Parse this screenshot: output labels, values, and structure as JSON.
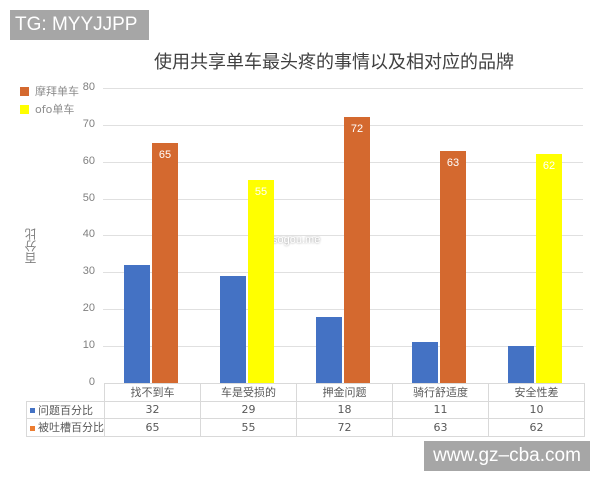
{
  "watermark_top": "TG: MYYJJPP",
  "watermark_bottom": "www.gz–cba.com",
  "watermark_mid": "sogou.me",
  "chart_data": {
    "type": "bar",
    "title": "使用共享单车最头疼的事情以及相对应的品牌",
    "xlabel": "",
    "ylabel": "百分比",
    "ylim": [
      0,
      80
    ],
    "yticks": [
      0,
      10,
      20,
      30,
      40,
      50,
      60,
      70,
      80
    ],
    "grid": true,
    "legend_position": "top-left",
    "legend": [
      {
        "name": "摩拜单车",
        "color": "#d4692f"
      },
      {
        "name": "ofo单车",
        "color": "#ffff00"
      }
    ],
    "categories": [
      "找不到车",
      "车是受损的",
      "押金问题",
      "骑行舒适度",
      "安全性差"
    ],
    "series": [
      {
        "name": "问题百分比",
        "color": "#4472c4",
        "values": [
          32,
          29,
          18,
          11,
          10
        ]
      },
      {
        "name": "被吐槽百分比",
        "color": "#ed7d31",
        "values": [
          65,
          55,
          72,
          63,
          62
        ],
        "bar_colors": [
          "#d4692f",
          "#ffff00",
          "#d4692f",
          "#d4692f",
          "#ffff00"
        ]
      }
    ],
    "data_table": true
  }
}
